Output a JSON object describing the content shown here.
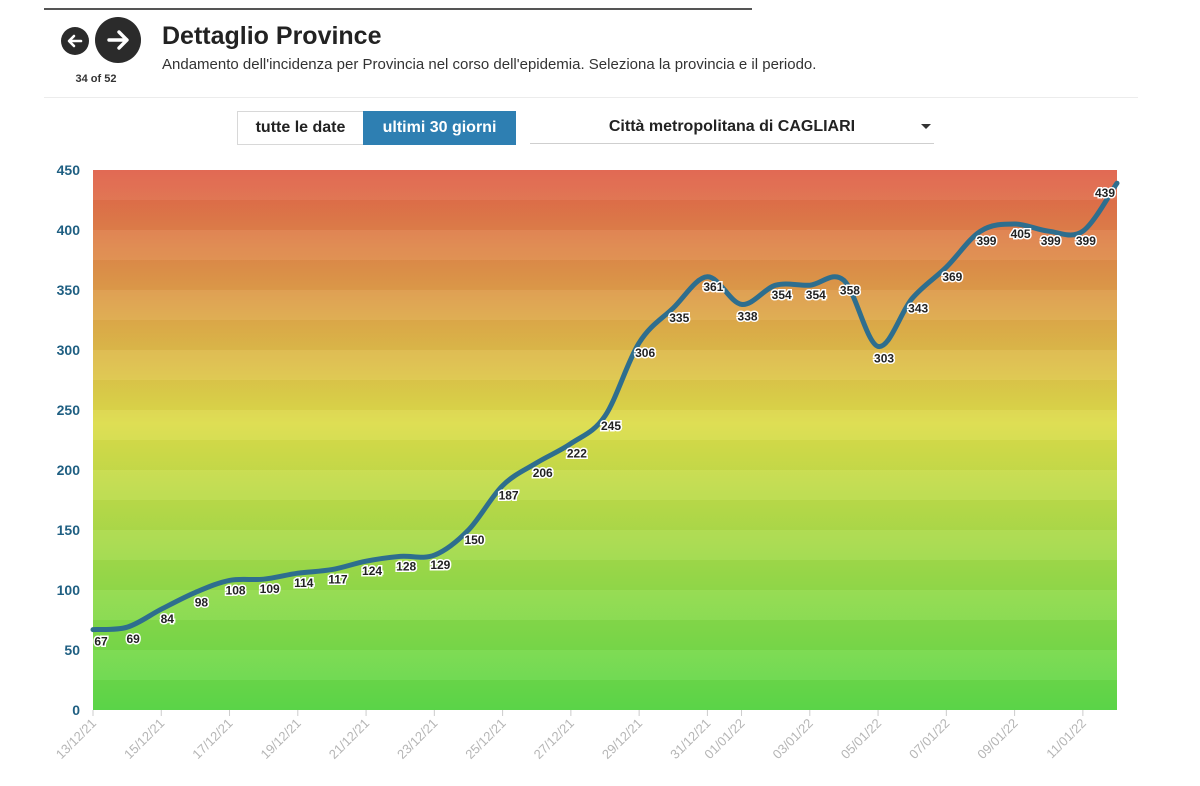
{
  "pager": {
    "current": "34 of 52"
  },
  "header": {
    "title": "Dettaglio Province",
    "subtitle": "Andamento dell'incidenza per Provincia nel corso dell'epidemia. Seleziona la provincia e il periodo."
  },
  "controls": {
    "range_all_label": "tutte le date",
    "range_30_label": "ultimi 30 giorni",
    "selected_range": "ultimi 30 giorni",
    "province_select": "Città metropolitana di CAGLIARI"
  },
  "colors": {
    "line": "#2e6e8e",
    "axis_text": "#1f5f82",
    "active_button": "#2e7fb2",
    "gradient_top": "#e0604a",
    "gradient_mid": "#dcdc4a",
    "gradient_bottom": "#5cd84a"
  },
  "chart_data": {
    "type": "line",
    "title": "",
    "xlabel": "",
    "ylabel": "",
    "ylim": [
      0,
      450
    ],
    "yticks": [
      0,
      50,
      100,
      150,
      200,
      250,
      300,
      350,
      400,
      450
    ],
    "grid": false,
    "x_tick_labels": [
      "13/12/21",
      "15/12/21",
      "17/12/21",
      "19/12/21",
      "21/12/21",
      "23/12/21",
      "25/12/21",
      "27/12/21",
      "29/12/21",
      "31/12/21",
      "01/01/22",
      "03/01/22",
      "05/01/22",
      "07/01/22",
      "09/01/22",
      "11/01/22"
    ],
    "x": [
      "13/12/21",
      "14/12/21",
      "15/12/21",
      "16/12/21",
      "17/12/21",
      "18/12/21",
      "19/12/21",
      "20/12/21",
      "21/12/21",
      "22/12/21",
      "23/12/21",
      "24/12/21",
      "25/12/21",
      "26/12/21",
      "27/12/21",
      "28/12/21",
      "29/12/21",
      "30/12/21",
      "31/12/21",
      "01/01/22",
      "02/01/22",
      "03/01/22",
      "04/01/22",
      "05/01/22",
      "06/01/22",
      "07/01/22",
      "08/01/22",
      "09/01/22",
      "10/01/22",
      "11/01/22",
      "12/01/22"
    ],
    "series": [
      {
        "values": [
          67,
          69,
          84,
          98,
          108,
          109,
          114,
          117,
          124,
          128,
          129,
          150,
          187,
          206,
          222,
          245,
          306,
          335,
          361,
          338,
          354,
          354,
          358,
          303,
          343,
          369,
          399,
          405,
          399,
          399,
          439
        ]
      }
    ]
  }
}
